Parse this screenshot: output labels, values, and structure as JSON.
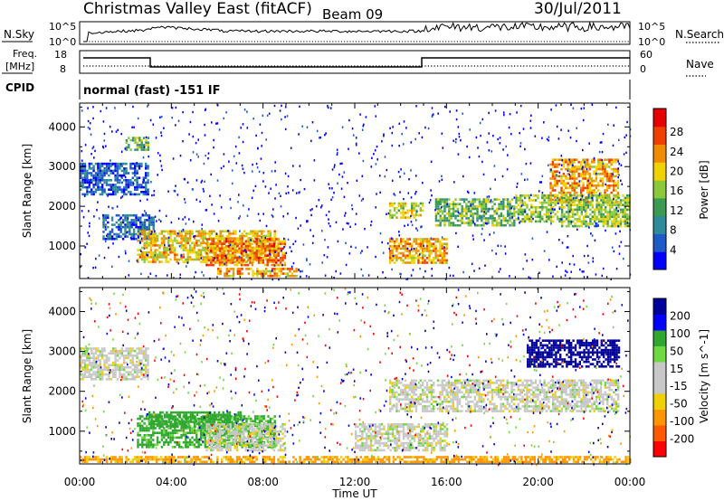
{
  "header": {
    "title": "Christmas Valley East (fitACF)",
    "beam": "Beam 09",
    "date": "30/Jul/2011"
  },
  "strip_panels": {
    "nsky_label": "N.Sky",
    "nsearch_label": "N.Search",
    "freq_label_1": "Freq.",
    "freq_label_2": "[MHz]",
    "nave_label": "Nave",
    "cpid_label": "CPID",
    "cpid_text": "normal (fast) -151 IF",
    "noise_ticks_left": [
      "10^5",
      "10^0"
    ],
    "noise_ticks_right": [
      "10^5",
      "10^0"
    ],
    "freq_ticks_left": [
      "18",
      "8"
    ],
    "nave_ticks_right": [
      "60",
      "0"
    ]
  },
  "colors": {
    "power_scale": [
      "#0000ff",
      "#1e5ac8",
      "#2f8a9a",
      "#3c9a50",
      "#8cc83c",
      "#f0d200",
      "#f08c00",
      "#f04000",
      "#e60000"
    ],
    "velocity_scale": [
      "#ff0000",
      "#ff5a00",
      "#ff9600",
      "#f0d000",
      "#c8c8c8",
      "#c8c8c8",
      "#70d840",
      "#30a830",
      "#0000ff",
      "#00009a"
    ]
  },
  "chart_data": [
    {
      "type": "heatmap",
      "name": "power",
      "ylabel": "Slant Range [km]",
      "xlabel": "",
      "x_ticks": [
        "00:00",
        "04:00",
        "08:00",
        "12:00",
        "16:00",
        "20:00",
        "00:00"
      ],
      "x_range_hours": [
        0,
        24
      ],
      "y_ticks": [
        1000,
        2000,
        3000,
        4000
      ],
      "y_range_km": [
        180,
        4600
      ],
      "colorbar": {
        "label": "Power [dB]",
        "ticks": [
          "4",
          "8",
          "12",
          "16",
          "20",
          "24",
          "28"
        ]
      },
      "echo_regions": [
        {
          "t": [
            0.0,
            3.0
          ],
          "r": [
            2300,
            3100
          ],
          "v": 6
        },
        {
          "t": [
            1.0,
            3.2
          ],
          "r": [
            1200,
            1800
          ],
          "v": 7
        },
        {
          "t": [
            2.5,
            8.5
          ],
          "r": [
            600,
            1400
          ],
          "v": 20
        },
        {
          "t": [
            5.5,
            9.0
          ],
          "r": [
            500,
            1200
          ],
          "v": 24
        },
        {
          "t": [
            2.0,
            3.0
          ],
          "r": [
            3400,
            3750
          ],
          "v": 14
        },
        {
          "t": [
            6.0,
            9.5
          ],
          "r": [
            220,
            450
          ],
          "v": 22
        },
        {
          "t": [
            13.5,
            16.0
          ],
          "r": [
            600,
            1200
          ],
          "v": 22
        },
        {
          "t": [
            13.5,
            15.0
          ],
          "r": [
            1700,
            2100
          ],
          "v": 18
        },
        {
          "t": [
            15.5,
            19.0
          ],
          "r": [
            1500,
            2200
          ],
          "v": 14
        },
        {
          "t": [
            19.0,
            21.0
          ],
          "r": [
            1600,
            2300
          ],
          "v": 16
        },
        {
          "t": [
            20.5,
            23.5
          ],
          "r": [
            2100,
            3200
          ],
          "v": 22
        },
        {
          "t": [
            21.0,
            24.0
          ],
          "r": [
            1500,
            2300
          ],
          "v": 16
        }
      ]
    },
    {
      "type": "heatmap",
      "name": "velocity",
      "ylabel": "Slant Range [km]",
      "xlabel": "Time UT",
      "x_ticks": [
        "00:00",
        "04:00",
        "08:00",
        "12:00",
        "16:00",
        "20:00",
        "00:00"
      ],
      "x_range_hours": [
        0,
        24
      ],
      "y_ticks": [
        1000,
        2000,
        3000,
        4000
      ],
      "y_range_km": [
        180,
        4600
      ],
      "colorbar": {
        "label": "Velocity [m s^-1]",
        "ticks": [
          "200",
          "100",
          "50",
          "15",
          "-15",
          "-50",
          "-100",
          "-200"
        ]
      },
      "echo_regions": [
        {
          "t": [
            0.0,
            3.0
          ],
          "r": [
            2300,
            3100
          ],
          "v": 0
        },
        {
          "t": [
            2.5,
            8.5
          ],
          "r": [
            600,
            1400
          ],
          "v": 60
        },
        {
          "t": [
            3.0,
            7.0
          ],
          "r": [
            1100,
            1500
          ],
          "v": 70
        },
        {
          "t": [
            5.5,
            9.0
          ],
          "r": [
            500,
            1200
          ],
          "v": 0
        },
        {
          "t": [
            0.0,
            24.0
          ],
          "r": [
            220,
            380
          ],
          "v": -60
        },
        {
          "t": [
            12.0,
            16.0
          ],
          "r": [
            500,
            1200
          ],
          "v": 0
        },
        {
          "t": [
            13.5,
            23.5
          ],
          "r": [
            1500,
            2300
          ],
          "v": 0
        },
        {
          "t": [
            19.5,
            23.5
          ],
          "r": [
            2600,
            3300
          ],
          "v": 250
        }
      ]
    }
  ]
}
